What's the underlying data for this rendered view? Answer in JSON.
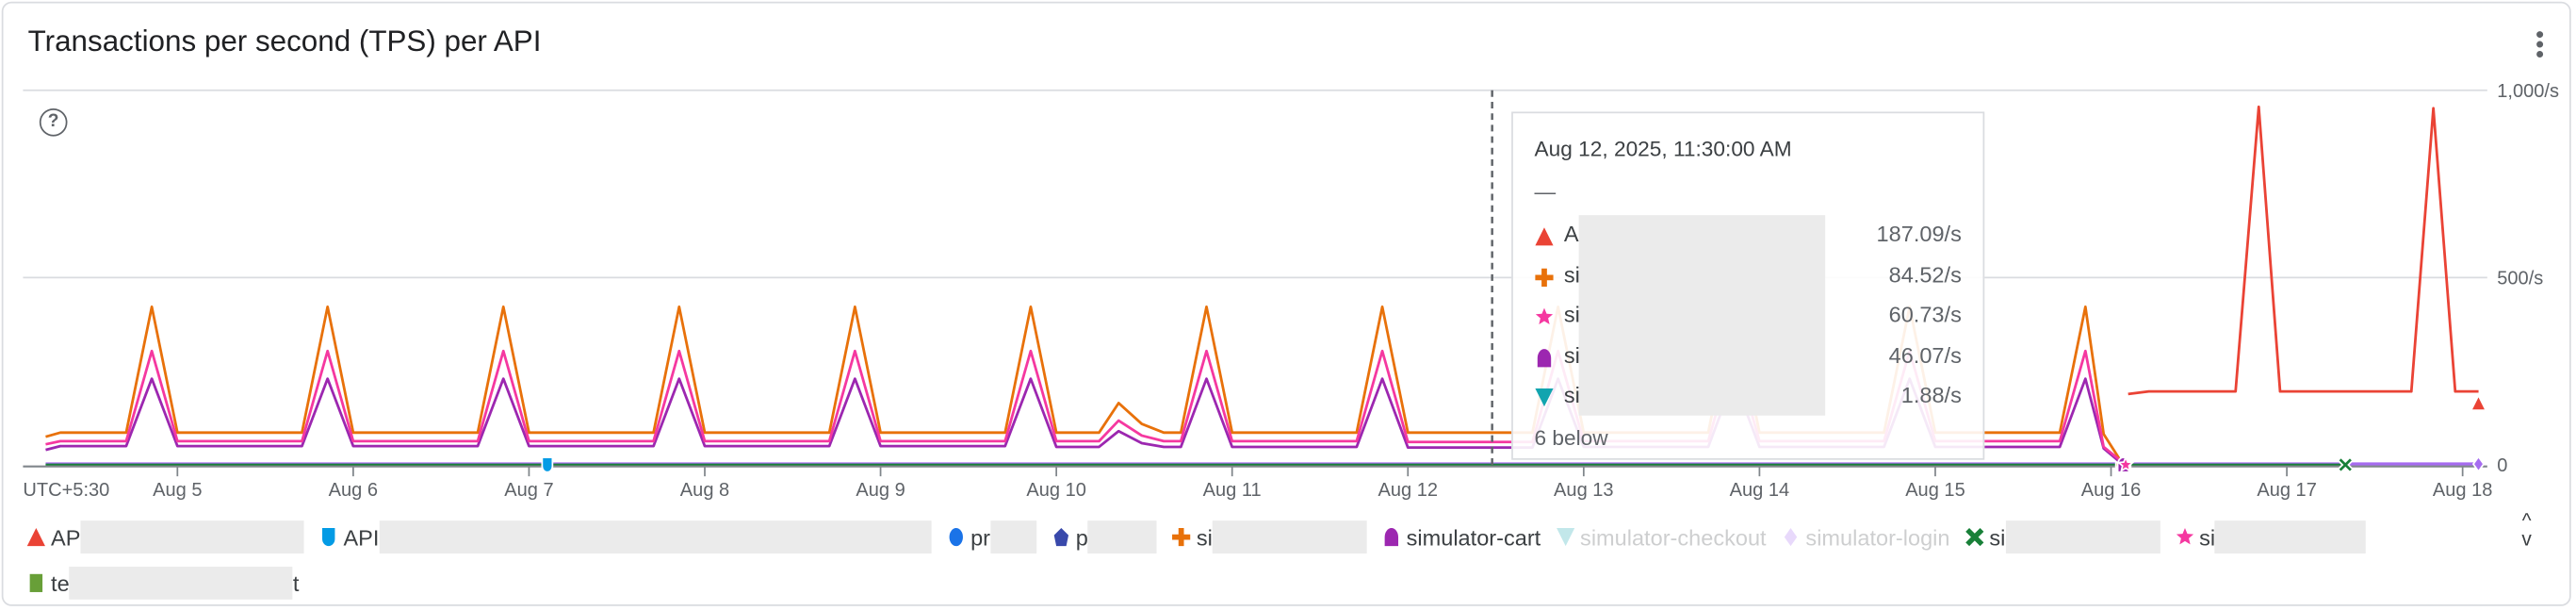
{
  "card": {
    "title": "Transactions per second (TPS) per API",
    "menu_icon": "more-vert-icon",
    "help_icon": "help-circle-icon",
    "help_glyph": "?"
  },
  "tooltip": {
    "date": "Aug 12, 2025, 11:30:00 AM",
    "dash": "—",
    "rows": [
      {
        "label": "A",
        "value": "187.09/s",
        "marker": "triangle",
        "color": "#ea4335"
      },
      {
        "label": "si",
        "value": "84.52/s",
        "marker": "plus",
        "color": "#e8710a"
      },
      {
        "label": "si",
        "value": "60.73/s",
        "marker": "star",
        "color": "#f538a0"
      },
      {
        "label": "si",
        "value": "46.07/s",
        "marker": "bullet",
        "color": "#9c27b0"
      },
      {
        "label": "si",
        "value": "1.88/s",
        "marker": "down-triangle",
        "color": "#12a4af"
      }
    ],
    "below": "6 below"
  },
  "legend_toggle": {
    "up": "^",
    "down": "v"
  },
  "chart_data": {
    "type": "line",
    "timezone_label": "UTC+5:30",
    "x_ticks": [
      "Aug 5",
      "Aug 6",
      "Aug 7",
      "Aug 8",
      "Aug 9",
      "Aug 10",
      "Aug 11",
      "Aug 12",
      "Aug 13",
      "Aug 14",
      "Aug 15",
      "Aug 16",
      "Aug 17",
      "Aug 18"
    ],
    "y_ticks": [
      {
        "value": 0,
        "label": "0"
      },
      {
        "value": 500,
        "label": "500/s"
      },
      {
        "value": 1000,
        "label": "1,000/s"
      }
    ],
    "ylim": [
      0,
      1000
    ],
    "grid": true,
    "hover_time": "2025-08-12T11:30",
    "series": [
      {
        "name": "AP",
        "row": 0,
        "redact": 136,
        "color": "#ea4335",
        "marker": "triangle",
        "points": [
          [
            "2025-08-16T02:20",
            189
          ],
          [
            "2025-08-16T05:10",
            196
          ],
          [
            "2025-08-16T17:00",
            196
          ],
          [
            "2025-08-16T20:10",
            956
          ],
          [
            "2025-08-16T23:05",
            196
          ],
          [
            "2025-08-17T17:00",
            196
          ],
          [
            "2025-08-17T20:00",
            952
          ],
          [
            "2025-08-17T23:00",
            196
          ],
          [
            "2025-08-18T02:10",
            196
          ]
        ]
      },
      {
        "name": "API",
        "row": 0,
        "redact": 336,
        "color": "#039be5",
        "marker": "shield",
        "points": [
          [
            "2025-08-04T06:00",
            0
          ],
          [
            "2025-08-07T02:30",
            0
          ]
        ]
      },
      {
        "name": "pr",
        "row": 0,
        "redact": 28,
        "color": "#1a73e8",
        "marker": "circle",
        "points": []
      },
      {
        "name": "p",
        "row": 0,
        "redact": 42,
        "color": "#3949ab",
        "marker": "pentagon",
        "points": []
      },
      {
        "name": "si",
        "row": 0,
        "redact": 94,
        "color": "#e8710a",
        "marker": "plus",
        "points": [
          [
            "2025-08-04T06:00",
            75
          ],
          [
            "2025-08-04T08:00",
            86
          ],
          [
            "2025-08-04T17:00",
            86
          ],
          [
            "2025-08-04T20:30",
            422
          ],
          [
            "2025-08-05T00:00",
            86
          ],
          [
            "2025-08-05T17:00",
            86
          ],
          [
            "2025-08-05T20:30",
            422
          ],
          [
            "2025-08-06T00:00",
            86
          ],
          [
            "2025-08-06T17:00",
            86
          ],
          [
            "2025-08-06T20:30",
            422
          ],
          [
            "2025-08-07T00:00",
            86
          ],
          [
            "2025-08-07T17:00",
            86
          ],
          [
            "2025-08-07T20:30",
            422
          ],
          [
            "2025-08-08T00:00",
            86
          ],
          [
            "2025-08-08T17:00",
            86
          ],
          [
            "2025-08-08T20:30",
            422
          ],
          [
            "2025-08-09T00:00",
            86
          ],
          [
            "2025-08-09T17:00",
            86
          ],
          [
            "2025-08-09T20:30",
            422
          ],
          [
            "2025-08-10T00:00",
            86
          ],
          [
            "2025-08-10T05:50",
            86
          ],
          [
            "2025-08-10T08:30",
            165
          ],
          [
            "2025-08-10T11:40",
            109
          ],
          [
            "2025-08-10T14:40",
            86
          ],
          [
            "2025-08-10T17:00",
            86
          ],
          [
            "2025-08-10T20:30",
            422
          ],
          [
            "2025-08-11T00:00",
            86
          ],
          [
            "2025-08-11T17:00",
            86
          ],
          [
            "2025-08-11T20:30",
            422
          ],
          [
            "2025-08-12T00:00",
            86
          ],
          [
            "2025-08-12T17:00",
            86
          ],
          [
            "2025-08-12T20:30",
            422
          ],
          [
            "2025-08-13T00:00",
            86
          ],
          [
            "2025-08-13T17:00",
            86
          ],
          [
            "2025-08-13T20:30",
            422
          ],
          [
            "2025-08-14T00:00",
            86
          ],
          [
            "2025-08-14T17:00",
            86
          ],
          [
            "2025-08-14T20:30",
            422
          ],
          [
            "2025-08-15T00:00",
            86
          ],
          [
            "2025-08-15T17:00",
            86
          ],
          [
            "2025-08-15T20:30",
            422
          ],
          [
            "2025-08-15T23:00",
            82
          ],
          [
            "2025-08-16T01:40",
            0
          ]
        ]
      },
      {
        "name": "simulator-cart",
        "row": 0,
        "color": "#9c27b0",
        "marker": "bullet",
        "points": [
          [
            "2025-08-04T06:00",
            40
          ],
          [
            "2025-08-04T08:00",
            50
          ],
          [
            "2025-08-04T17:00",
            50
          ],
          [
            "2025-08-04T20:30",
            230
          ],
          [
            "2025-08-05T00:00",
            50
          ],
          [
            "2025-08-05T17:00",
            50
          ],
          [
            "2025-08-05T20:30",
            230
          ],
          [
            "2025-08-06T00:00",
            50
          ],
          [
            "2025-08-06T17:00",
            50
          ],
          [
            "2025-08-06T20:30",
            230
          ],
          [
            "2025-08-07T00:00",
            50
          ],
          [
            "2025-08-07T17:00",
            50
          ],
          [
            "2025-08-07T20:30",
            230
          ],
          [
            "2025-08-08T00:00",
            50
          ],
          [
            "2025-08-08T17:00",
            50
          ],
          [
            "2025-08-08T20:30",
            230
          ],
          [
            "2025-08-09T00:00",
            50
          ],
          [
            "2025-08-09T17:00",
            50
          ],
          [
            "2025-08-09T20:30",
            230
          ],
          [
            "2025-08-10T00:00",
            48
          ],
          [
            "2025-08-10T05:50",
            48
          ],
          [
            "2025-08-10T08:30",
            90
          ],
          [
            "2025-08-10T11:40",
            58
          ],
          [
            "2025-08-10T14:40",
            48
          ],
          [
            "2025-08-10T17:00",
            48
          ],
          [
            "2025-08-10T20:30",
            230
          ],
          [
            "2025-08-11T00:00",
            48
          ],
          [
            "2025-08-11T17:00",
            48
          ],
          [
            "2025-08-11T20:30",
            230
          ],
          [
            "2025-08-12T00:00",
            46
          ],
          [
            "2025-08-12T17:00",
            46
          ],
          [
            "2025-08-12T20:30",
            230
          ],
          [
            "2025-08-13T00:00",
            48
          ],
          [
            "2025-08-13T17:00",
            48
          ],
          [
            "2025-08-13T20:30",
            230
          ],
          [
            "2025-08-14T00:00",
            48
          ],
          [
            "2025-08-14T17:00",
            48
          ],
          [
            "2025-08-14T20:30",
            230
          ],
          [
            "2025-08-15T00:00",
            48
          ],
          [
            "2025-08-15T17:00",
            48
          ],
          [
            "2025-08-15T20:30",
            230
          ],
          [
            "2025-08-15T23:00",
            44
          ],
          [
            "2025-08-16T01:40",
            0
          ]
        ]
      },
      {
        "name": "simulator-checkout",
        "row": 0,
        "faded": true,
        "color": "#12a4af",
        "marker": "down-triangle",
        "points": []
      },
      {
        "name": "simulator-login",
        "row": 0,
        "faded": true,
        "color": "#a66cf0",
        "marker": "diamond",
        "points": [
          [
            "2025-08-04T06:00",
            2
          ],
          [
            "2025-08-18T02:10",
            2
          ]
        ]
      },
      {
        "name": "si",
        "row": 0,
        "redact": 94,
        "color": "#188038",
        "marker": "x",
        "points": [
          [
            "2025-08-04T06:00",
            0
          ],
          [
            "2025-08-17T08:00",
            0
          ]
        ]
      },
      {
        "name": "si",
        "row": 0,
        "redact": 92,
        "color": "#f538a0",
        "marker": "star",
        "points": [
          [
            "2025-08-04T06:00",
            55
          ],
          [
            "2025-08-04T08:00",
            63
          ],
          [
            "2025-08-04T17:00",
            63
          ],
          [
            "2025-08-04T20:30",
            304
          ],
          [
            "2025-08-05T00:00",
            63
          ],
          [
            "2025-08-05T17:00",
            63
          ],
          [
            "2025-08-05T20:30",
            304
          ],
          [
            "2025-08-06T00:00",
            63
          ],
          [
            "2025-08-06T17:00",
            63
          ],
          [
            "2025-08-06T20:30",
            304
          ],
          [
            "2025-08-07T00:00",
            63
          ],
          [
            "2025-08-07T17:00",
            63
          ],
          [
            "2025-08-07T20:30",
            304
          ],
          [
            "2025-08-08T00:00",
            63
          ],
          [
            "2025-08-08T17:00",
            63
          ],
          [
            "2025-08-08T20:30",
            304
          ],
          [
            "2025-08-09T00:00",
            63
          ],
          [
            "2025-08-09T17:00",
            63
          ],
          [
            "2025-08-09T20:30",
            304
          ],
          [
            "2025-08-10T00:00",
            63
          ],
          [
            "2025-08-10T05:50",
            63
          ],
          [
            "2025-08-10T08:30",
            118
          ],
          [
            "2025-08-10T11:40",
            78
          ],
          [
            "2025-08-10T14:40",
            63
          ],
          [
            "2025-08-10T17:00",
            63
          ],
          [
            "2025-08-10T20:30",
            304
          ],
          [
            "2025-08-11T00:00",
            63
          ],
          [
            "2025-08-11T17:00",
            63
          ],
          [
            "2025-08-11T20:30",
            304
          ],
          [
            "2025-08-12T00:00",
            61
          ],
          [
            "2025-08-12T17:00",
            61
          ],
          [
            "2025-08-12T20:30",
            304
          ],
          [
            "2025-08-13T00:00",
            63
          ],
          [
            "2025-08-13T17:00",
            63
          ],
          [
            "2025-08-13T20:30",
            304
          ],
          [
            "2025-08-14T00:00",
            63
          ],
          [
            "2025-08-14T17:00",
            63
          ],
          [
            "2025-08-14T20:30",
            304
          ],
          [
            "2025-08-15T00:00",
            63
          ],
          [
            "2025-08-15T17:00",
            63
          ],
          [
            "2025-08-15T20:30",
            304
          ],
          [
            "2025-08-15T23:00",
            48
          ],
          [
            "2025-08-16T02:00",
            0
          ]
        ]
      },
      {
        "name": "te",
        "suffix": "t",
        "row": 1,
        "redact": 136,
        "color": "#689f38",
        "marker": "square",
        "points": []
      }
    ]
  }
}
